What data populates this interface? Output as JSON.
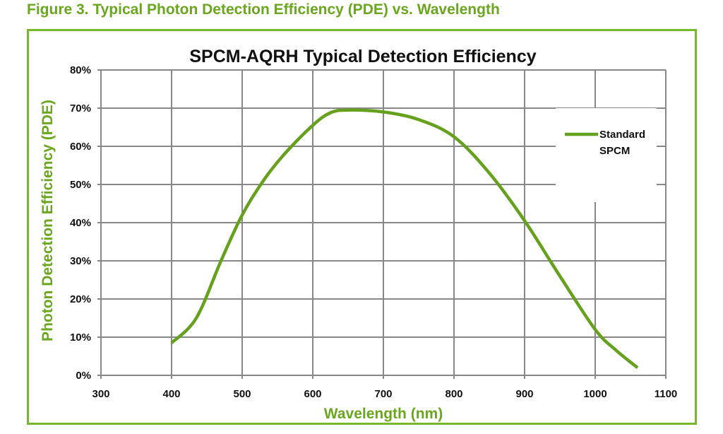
{
  "figure_caption": "Figure 3. Typical Photon Detection Efficiency (PDE) vs. Wavelength",
  "colors": {
    "accent": "#6aa61e",
    "frame": "#77b82a",
    "series": "#66a11d",
    "grid": "#888888"
  },
  "chart_data": {
    "type": "line",
    "title": "SPCM-AQRH Typical Detection Efficiency",
    "xlabel": "Wavelength (nm)",
    "ylabel": "Photon Detection Efficiency (PDE)",
    "xlim": [
      300,
      1100
    ],
    "ylim": [
      0,
      80
    ],
    "xticks": [
      "300",
      "400",
      "500",
      "600",
      "700",
      "800",
      "900",
      "1000",
      "1100"
    ],
    "yticks": [
      "0%",
      "10%",
      "20%",
      "30%",
      "40%",
      "50%",
      "60%",
      "70%",
      "80%"
    ],
    "grid": true,
    "legend_position": "right",
    "series": [
      {
        "name": "Standard SPCM",
        "legend_lines": [
          "Standard",
          "SPCM"
        ],
        "x": [
          400,
          435,
          470,
          500,
          530,
          560,
          600,
          625,
          650,
          700,
          750,
          800,
          850,
          900,
          950,
          1000,
          1030,
          1060
        ],
        "y": [
          8.5,
          15,
          30,
          42,
          51,
          58,
          65.5,
          68.8,
          69.5,
          69,
          67,
          62.5,
          53,
          40.5,
          26,
          12,
          6.5,
          2
        ]
      }
    ]
  }
}
